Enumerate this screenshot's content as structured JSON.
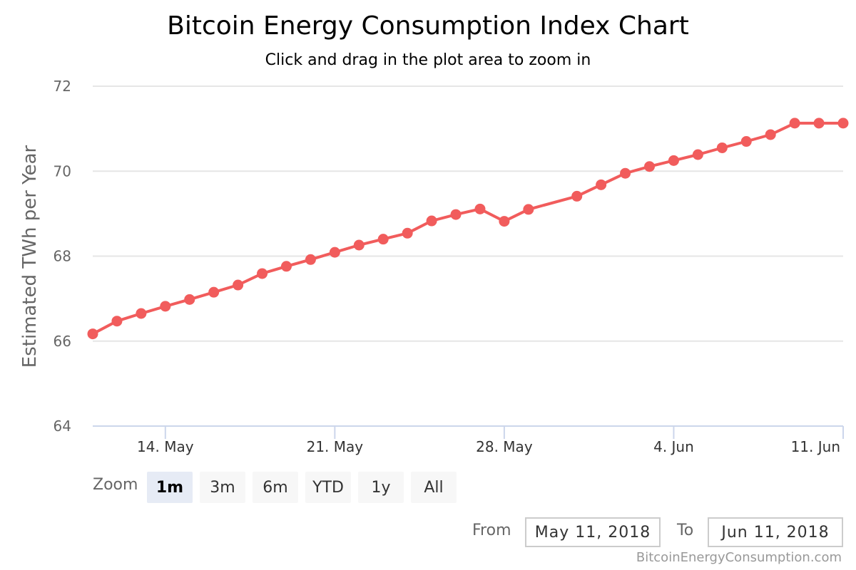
{
  "chart_data": {
    "type": "line",
    "title": "Bitcoin Energy Consumption Index Chart",
    "subtitle": "Click and drag in the plot area to zoom in",
    "ylabel": "Estimated TWh per Year",
    "xlabel": "",
    "ylim": [
      64,
      72
    ],
    "yticks": [
      64,
      66,
      68,
      70,
      72
    ],
    "xlim": [
      0,
      31
    ],
    "xticks": [
      {
        "day": 3,
        "label": "14. May"
      },
      {
        "day": 10,
        "label": "21. May"
      },
      {
        "day": 17,
        "label": "28. May"
      },
      {
        "day": 24,
        "label": "4. Jun"
      },
      {
        "day": 31,
        "label": "11. Jun"
      }
    ],
    "grid": true,
    "series": [
      {
        "name": "Estimated TWh per Year",
        "color": "#f15c5c",
        "x": [
          0,
          1,
          2,
          3,
          4,
          5,
          6,
          7,
          8,
          9,
          10,
          11,
          12,
          13,
          14,
          15,
          16,
          17,
          18,
          20,
          21,
          22,
          23,
          24,
          25,
          26,
          27,
          28,
          29,
          30,
          31
        ],
        "values": [
          66.17,
          66.47,
          66.65,
          66.82,
          66.98,
          67.15,
          67.32,
          67.59,
          67.76,
          67.92,
          68.09,
          68.26,
          68.4,
          68.54,
          68.83,
          68.98,
          69.11,
          68.82,
          69.1,
          69.41,
          69.68,
          69.95,
          70.11,
          70.25,
          70.39,
          70.55,
          70.7,
          70.86,
          71.13,
          71.13,
          71.13
        ]
      }
    ]
  },
  "rangeSelector": {
    "zoom_label": "Zoom",
    "buttons": [
      "1m",
      "3m",
      "6m",
      "YTD",
      "1y",
      "All"
    ],
    "selected": "1m",
    "from_label": "From",
    "from_value": "May 11, 2018",
    "to_label": "To",
    "to_value": "Jun 11, 2018"
  },
  "credits": "BitcoinEnergyConsumption.com"
}
